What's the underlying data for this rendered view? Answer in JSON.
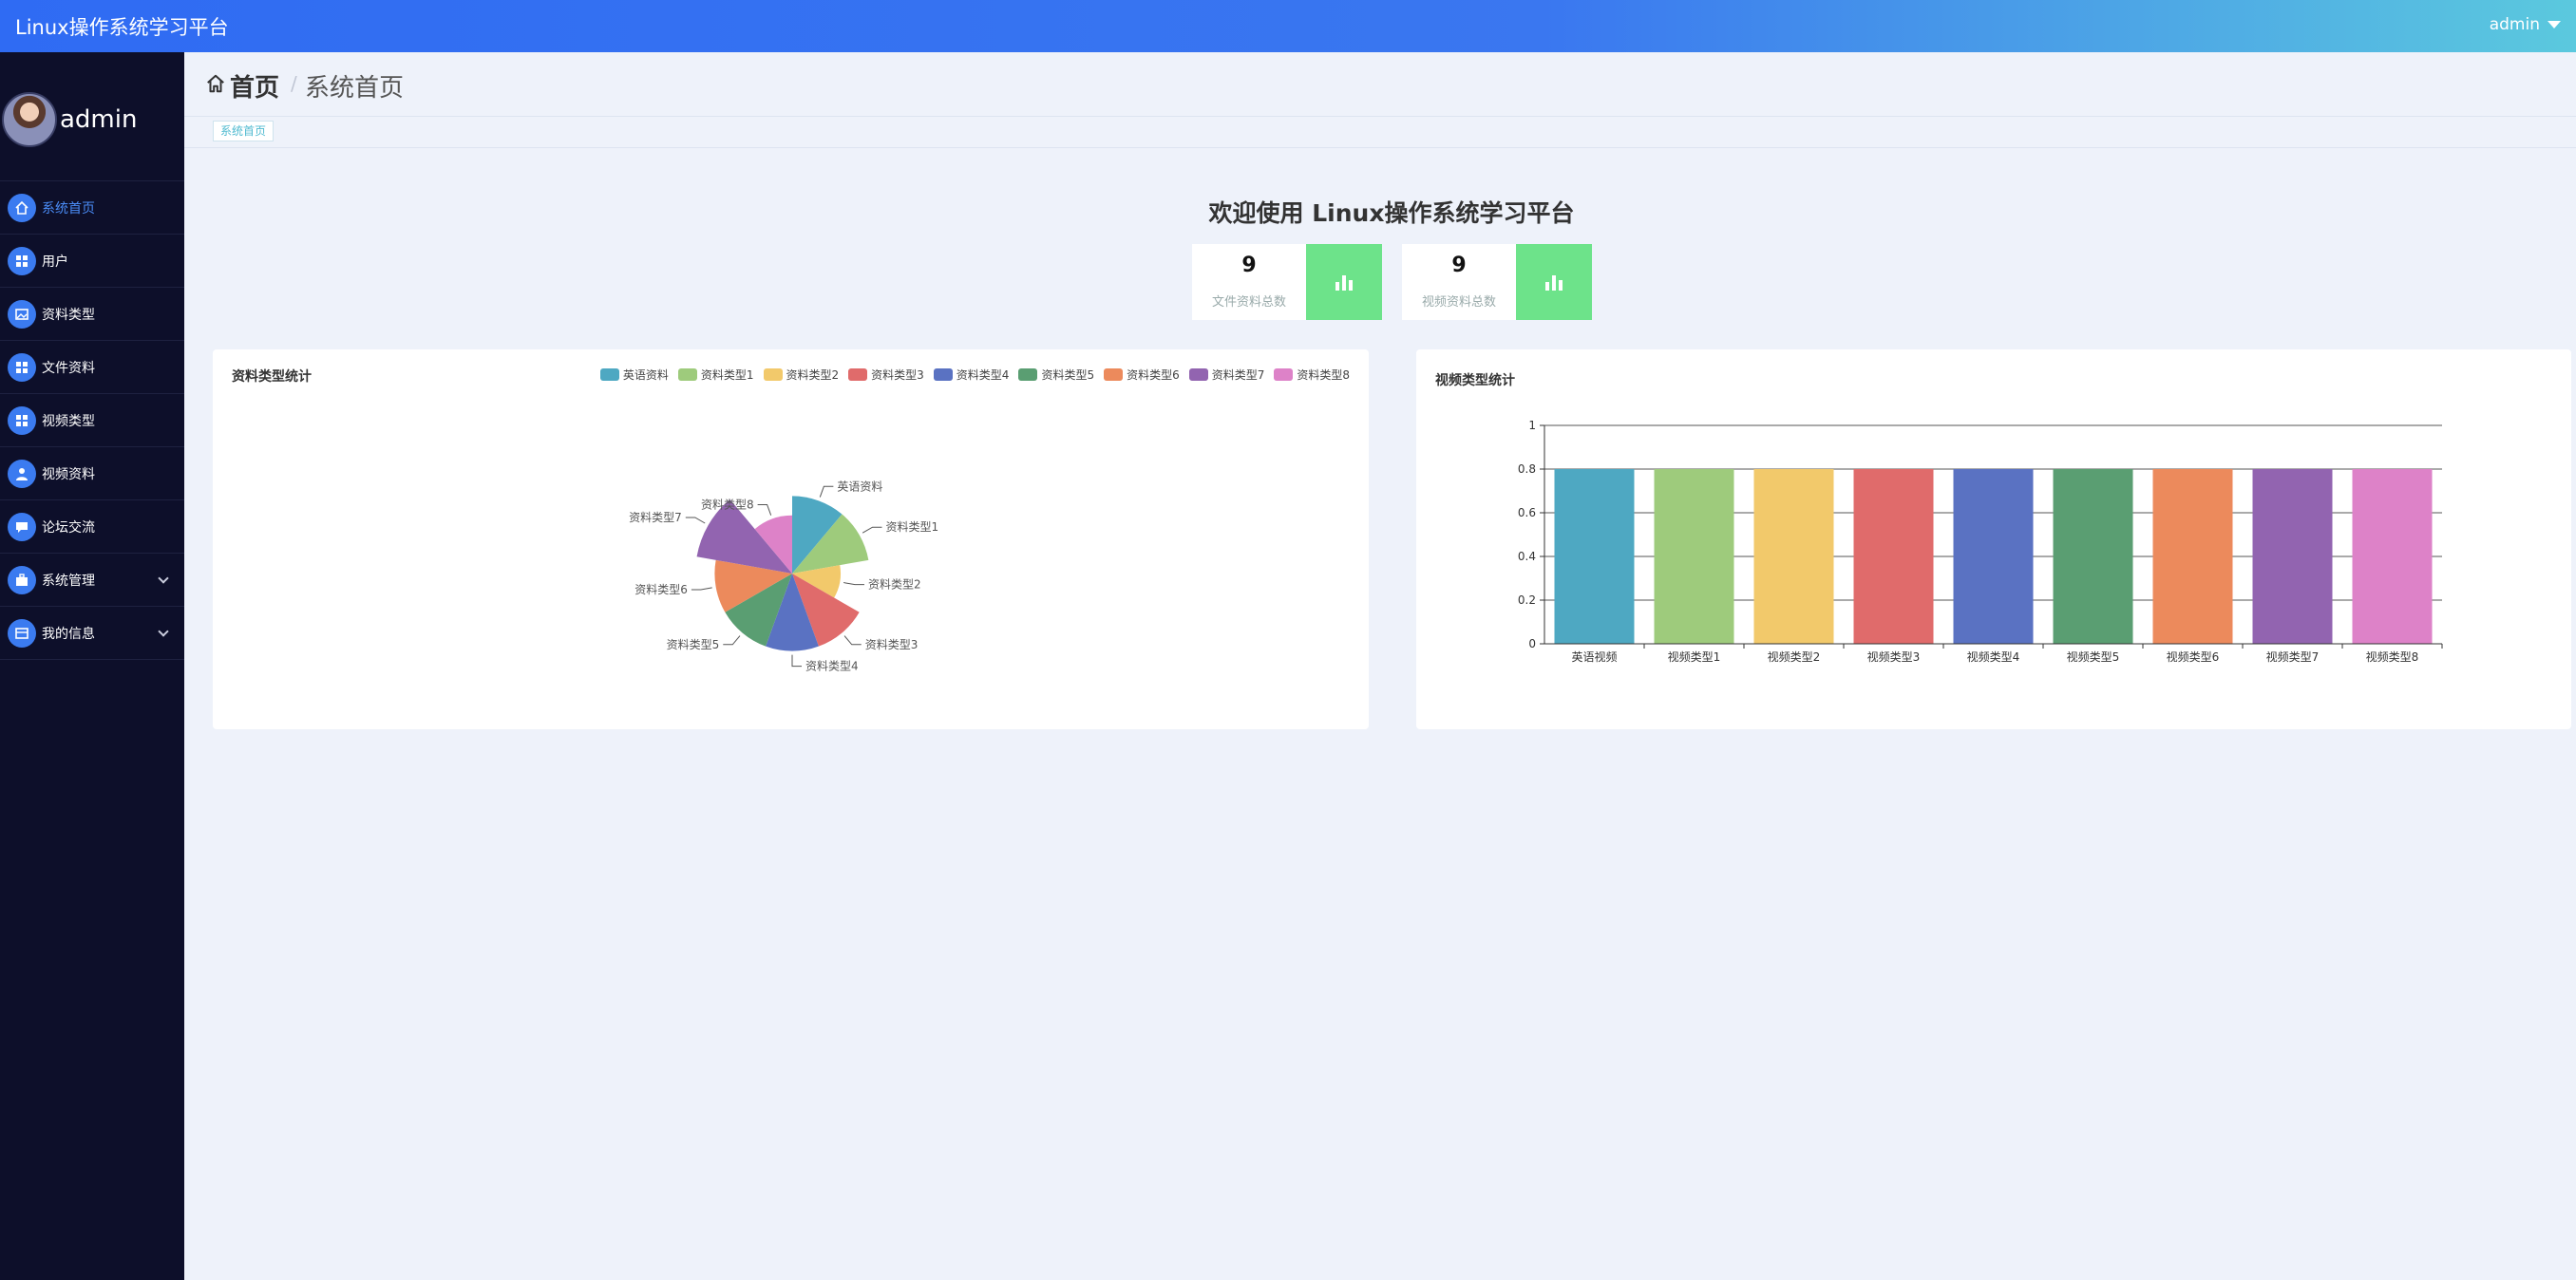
{
  "app": {
    "title": "Linux操作系统学习平台",
    "user": "admin"
  },
  "sidebar": {
    "username": "admin",
    "items": [
      {
        "label": "系统首页",
        "icon": "home-icon",
        "active": true,
        "expandable": false
      },
      {
        "label": "用户",
        "icon": "grid-icon",
        "active": false,
        "expandable": false
      },
      {
        "label": "资料类型",
        "icon": "image-icon",
        "active": false,
        "expandable": false
      },
      {
        "label": "文件资料",
        "icon": "grid-icon",
        "active": false,
        "expandable": false
      },
      {
        "label": "视频类型",
        "icon": "grid-icon",
        "active": false,
        "expandable": false
      },
      {
        "label": "视频资料",
        "icon": "user-icon",
        "active": false,
        "expandable": false
      },
      {
        "label": "论坛交流",
        "icon": "chat-icon",
        "active": false,
        "expandable": false
      },
      {
        "label": "系统管理",
        "icon": "briefcase-icon",
        "active": false,
        "expandable": true
      },
      {
        "label": "我的信息",
        "icon": "card-icon",
        "active": false,
        "expandable": true
      }
    ]
  },
  "header": {
    "home": "首页",
    "separator": "/",
    "current": "系统首页",
    "tag": "系统首页"
  },
  "welcome": "欢迎使用 Linux操作系统学习平台",
  "stats": [
    {
      "value": "9",
      "label": "文件资料总数"
    },
    {
      "value": "9",
      "label": "视频资料总数"
    }
  ],
  "colors": {
    "accent": "#3b7bf0",
    "stat_green": "#6de38a",
    "sidebar_bg": "#0d0f2a"
  },
  "chart_data": [
    {
      "type": "pie",
      "variant": "rose",
      "title": "资料类型统计",
      "legend_position": "top-right",
      "categories": [
        "英语资料",
        "资料类型1",
        "资料类型2",
        "资料类型3",
        "资料类型4",
        "资料类型5",
        "资料类型6",
        "资料类型7",
        "资料类型8"
      ],
      "values": [
        0.8,
        0.8,
        0.5,
        0.8,
        0.8,
        0.8,
        0.8,
        1.0,
        0.6
      ],
      "colors": [
        "#4ea8c2",
        "#9ecb7c",
        "#f2c96b",
        "#e06b6b",
        "#5a72c2",
        "#5a9e72",
        "#ec8a5c",
        "#9264b0",
        "#dd82c8"
      ]
    },
    {
      "type": "bar",
      "title": "视频类型统计",
      "categories": [
        "英语视频",
        "视频类型1",
        "视频类型2",
        "视频类型3",
        "视频类型4",
        "视频类型5",
        "视频类型6",
        "视频类型7",
        "视频类型8"
      ],
      "values": [
        0.8,
        0.8,
        0.8,
        0.8,
        0.8,
        0.8,
        0.8,
        0.8,
        0.8
      ],
      "ylim": [
        0,
        1
      ],
      "yticks": [
        "0",
        "0.2",
        "0.4",
        "0.6",
        "0.8",
        "1"
      ],
      "grid": true,
      "colors": [
        "#4ea8c2",
        "#9ecb7c",
        "#f2c96b",
        "#e06b6b",
        "#5a72c2",
        "#5a9e72",
        "#ec8a5c",
        "#9264b0",
        "#dd82c8"
      ]
    }
  ]
}
